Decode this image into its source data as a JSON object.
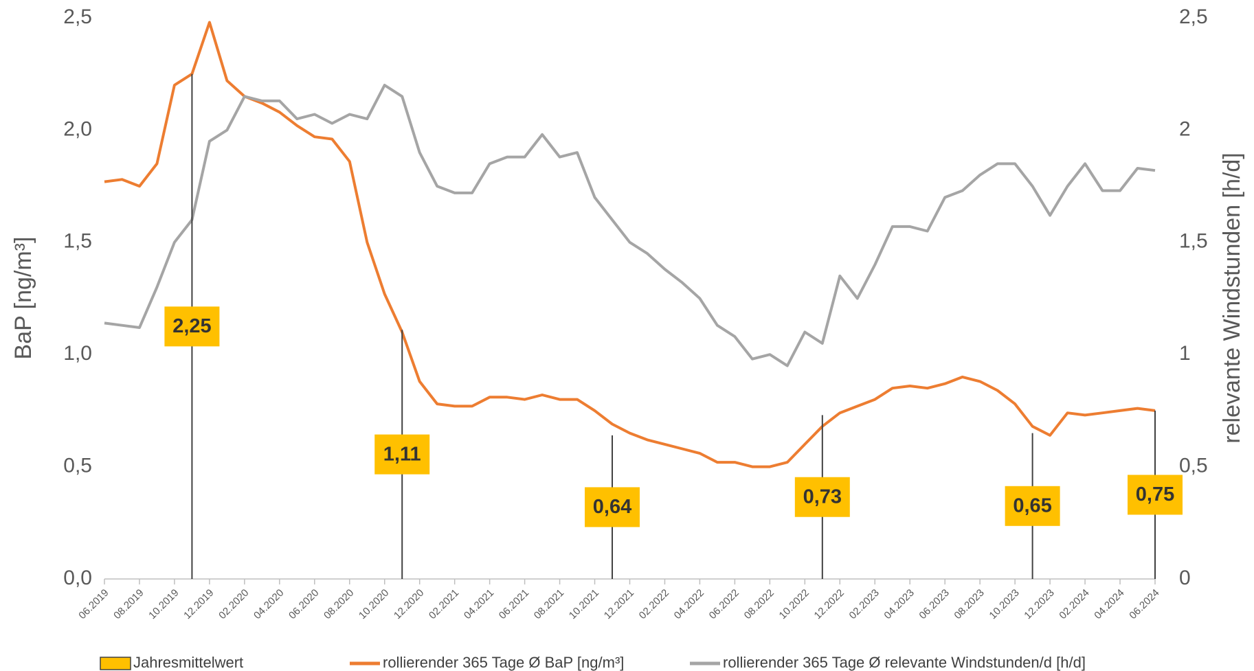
{
  "chart_data": {
    "type": "line",
    "y_label": "BaP [ng/m³]",
    "y2_label": "relevante Windstunden [h/d]",
    "categories": [
      "06.2019",
      null,
      "08.2019",
      null,
      "10.2019",
      null,
      "12.2019",
      null,
      "02.2020",
      null,
      "04.2020",
      null,
      "06.2020",
      null,
      "08.2020",
      null,
      "10.2020",
      null,
      "12.2020",
      null,
      "02.2021",
      null,
      "04.2021",
      null,
      "06.2021",
      null,
      "08.2021",
      null,
      "10.2021",
      null,
      "12.2021",
      null,
      "02.2022",
      null,
      "04.2022",
      null,
      "06.2022",
      null,
      "08.2022",
      null,
      "10.2022",
      null,
      "12.2022",
      null,
      "02.2023",
      null,
      "04.2023",
      null,
      "06.2023",
      null,
      "08.2023",
      null,
      "10.2023",
      null,
      "12.2023",
      null,
      "02.2024",
      null,
      "04.2024",
      null,
      "06.2024"
    ],
    "ylim": [
      0,
      2.5
    ],
    "yticks": [
      {
        "value": 0,
        "label": "0,0"
      },
      {
        "value": 0.5,
        "label": "0,5"
      },
      {
        "value": 1,
        "label": "1,0"
      },
      {
        "value": 1.5,
        "label": "1,5"
      },
      {
        "value": 2,
        "label": "2,0"
      },
      {
        "value": 2.5,
        "label": "2,5"
      }
    ],
    "y2lim": [
      0,
      2.5
    ],
    "y2ticks": [
      0,
      {
        "value": 0.5,
        "label": "0,5"
      },
      1,
      {
        "value": 1.5,
        "label": "1,5"
      },
      2,
      {
        "value": 2.5,
        "label": "2,5"
      }
    ],
    "series": [
      {
        "name": "Jahresmittelwert",
        "type": "bar",
        "color": "#ffc000",
        "values": [
          null,
          null,
          null,
          null,
          null,
          2.25,
          null,
          null,
          null,
          null,
          null,
          null,
          null,
          null,
          null,
          null,
          null,
          1.11,
          null,
          null,
          null,
          null,
          null,
          null,
          null,
          null,
          null,
          null,
          null,
          0.64,
          null,
          null,
          null,
          null,
          null,
          null,
          null,
          null,
          null,
          null,
          null,
          0.73,
          null,
          null,
          null,
          null,
          null,
          null,
          null,
          null,
          null,
          null,
          null,
          0.65,
          null,
          null,
          null,
          null,
          null,
          null,
          0.75
        ],
        "value_labels": [
          null,
          null,
          null,
          null,
          null,
          "2,25",
          null,
          null,
          null,
          null,
          null,
          null,
          null,
          null,
          null,
          null,
          null,
          "1,11",
          null,
          null,
          null,
          null,
          null,
          null,
          null,
          null,
          null,
          null,
          null,
          "0,64",
          null,
          null,
          null,
          null,
          null,
          null,
          null,
          null,
          null,
          null,
          null,
          "0,73",
          null,
          null,
          null,
          null,
          null,
          null,
          null,
          null,
          null,
          null,
          null,
          "0,65",
          null,
          null,
          null,
          null,
          null,
          null,
          "0,75"
        ]
      },
      {
        "name": "rollierender 365 Tage Ø BaP [ng/m³]",
        "type": "line",
        "color": "#ed7d31",
        "values": [
          1.77,
          1.78,
          1.75,
          1.85,
          2.2,
          2.25,
          2.48,
          2.22,
          2.15,
          2.12,
          2.08,
          2.02,
          1.97,
          1.96,
          1.86,
          1.5,
          1.27,
          1.1,
          0.88,
          0.78,
          0.77,
          0.77,
          0.81,
          0.81,
          0.8,
          0.82,
          0.8,
          0.8,
          0.75,
          0.69,
          0.65,
          0.62,
          0.6,
          0.58,
          0.56,
          0.52,
          0.52,
          0.5,
          0.5,
          0.52,
          0.6,
          0.68,
          0.74,
          0.77,
          0.8,
          0.85,
          0.86,
          0.85,
          0.87,
          0.9,
          0.88,
          0.84,
          0.78,
          0.68,
          0.64,
          0.74,
          0.73,
          0.74,
          0.75,
          0.76,
          0.75
        ]
      },
      {
        "name": "rollierender 365 Tage Ø relevante Windstunden/d [h/d]",
        "type": "line",
        "axis": "y2",
        "color": "#a5a5a5",
        "values": [
          1.14,
          1.13,
          1.12,
          1.3,
          1.5,
          1.6,
          1.95,
          2.0,
          2.15,
          2.13,
          2.13,
          2.05,
          2.07,
          2.03,
          2.07,
          2.05,
          2.2,
          2.15,
          1.9,
          1.75,
          1.72,
          1.72,
          1.85,
          1.88,
          1.88,
          1.98,
          1.88,
          1.9,
          1.7,
          1.6,
          1.5,
          1.45,
          1.38,
          1.32,
          1.25,
          1.13,
          1.08,
          0.98,
          1.0,
          0.95,
          1.1,
          1.05,
          1.35,
          1.25,
          1.4,
          1.57,
          1.57,
          1.55,
          1.7,
          1.73,
          1.8,
          1.85,
          1.85,
          1.75,
          1.62,
          1.75,
          1.85,
          1.73,
          1.73,
          1.83,
          1.82
        ]
      }
    ],
    "grid": false
  }
}
